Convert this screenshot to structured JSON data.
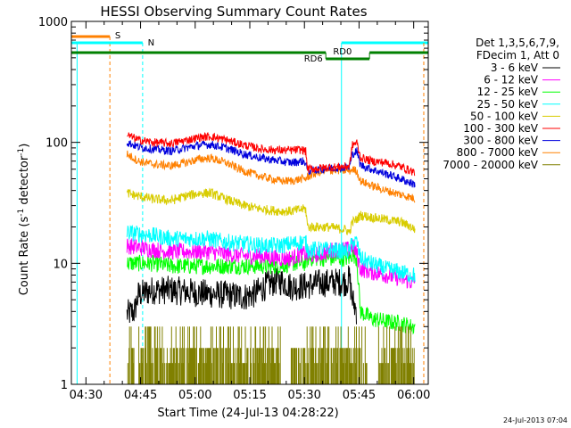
{
  "chart_data": {
    "type": "line",
    "title": "HESSI Observing Summary Count Rates",
    "xlabel": "Start Time (24-Jul-13 04:28:22)",
    "ylabel_main": "Count Rate (s",
    "ylabel_sup1": "-1",
    "ylabel_mid": " detector",
    "ylabel_sup2": "-1",
    "ylabel_end": ")",
    "x_unit": "minutes after 04:28:22",
    "x_range": [
      -2.37,
      95.63
    ],
    "y_range": [
      1,
      1000
    ],
    "y_scale": "log",
    "x_ticks": [
      {
        "label": "04:30",
        "v": 1.63
      },
      {
        "label": "04:45",
        "v": 16.63
      },
      {
        "label": "05:00",
        "v": 31.63
      },
      {
        "label": "05:15",
        "v": 46.63
      },
      {
        "label": "05:30",
        "v": 61.63
      },
      {
        "label": "05:45",
        "v": 76.63
      },
      {
        "label": "06:00",
        "v": 91.63
      }
    ],
    "y_ticks": [
      {
        "label": "1",
        "v": 1
      },
      {
        "label": "10",
        "v": 10
      },
      {
        "label": "100",
        "v": 100
      },
      {
        "label": "1000",
        "v": 1000
      }
    ],
    "legend": {
      "placement": "right",
      "header": [
        "Det 1,3,5,6,7,9,",
        "FDecim 1, Att 0"
      ],
      "entries": [
        {
          "label": "3 - 6 keV",
          "color": "#000000"
        },
        {
          "label": "6 - 12 keV",
          "color": "#ff00ff"
        },
        {
          "label": "12 - 25 keV",
          "color": "#00ff00"
        },
        {
          "label": "25 - 50 keV",
          "color": "#00ffff"
        },
        {
          "label": "50 - 100 keV",
          "color": "#d8cc00"
        },
        {
          "label": "100 - 300 keV",
          "color": "#ff0000"
        },
        {
          "label": "300 - 800 keV",
          "color": "#0000dd"
        },
        {
          "label": "800 - 7000 keV",
          "color": "#ff8000"
        },
        {
          "label": "7000 - 20000 keV",
          "color": "#808000"
        }
      ]
    },
    "series": [
      {
        "color": "#ff0000",
        "noise": 0.035,
        "points": [
          [
            12.9,
            115
          ],
          [
            16,
            105
          ],
          [
            20,
            100
          ],
          [
            25,
            98
          ],
          [
            29,
            104
          ],
          [
            33,
            110
          ],
          [
            36,
            112
          ],
          [
            40,
            105
          ],
          [
            45,
            95
          ],
          [
            50,
            88
          ],
          [
            55,
            86
          ],
          [
            58,
            86
          ],
          [
            61,
            87
          ],
          [
            62,
            84
          ],
          [
            62.5,
            60
          ],
          [
            68,
            62
          ],
          [
            73,
            63
          ],
          [
            74,
            64
          ],
          [
            74.8,
            95
          ],
          [
            76,
            100
          ],
          [
            77,
            75
          ],
          [
            80,
            70
          ],
          [
            84,
            68
          ],
          [
            88,
            63
          ],
          [
            91,
            58
          ],
          [
            92,
            56
          ]
        ]
      },
      {
        "color": "#0000dd",
        "noise": 0.035,
        "points": [
          [
            12.9,
            100
          ],
          [
            16,
            92
          ],
          [
            20,
            88
          ],
          [
            25,
            85
          ],
          [
            29,
            90
          ],
          [
            33,
            95
          ],
          [
            36,
            96
          ],
          [
            40,
            90
          ],
          [
            45,
            80
          ],
          [
            50,
            74
          ],
          [
            55,
            70
          ],
          [
            58,
            68
          ],
          [
            61,
            70
          ],
          [
            62,
            68
          ],
          [
            62.5,
            58
          ],
          [
            66,
            60
          ],
          [
            70,
            62
          ],
          [
            74,
            62
          ],
          [
            74.8,
            80
          ],
          [
            76,
            85
          ],
          [
            77,
            65
          ],
          [
            80,
            60
          ],
          [
            84,
            55
          ],
          [
            88,
            50
          ],
          [
            91,
            46
          ],
          [
            92,
            45
          ]
        ]
      },
      {
        "color": "#ff8000",
        "noise": 0.035,
        "points": [
          [
            12.9,
            80
          ],
          [
            16,
            70
          ],
          [
            20,
            66
          ],
          [
            25,
            64
          ],
          [
            29,
            68
          ],
          [
            33,
            73
          ],
          [
            36,
            74
          ],
          [
            40,
            68
          ],
          [
            45,
            58
          ],
          [
            50,
            52
          ],
          [
            55,
            48
          ],
          [
            58,
            48
          ],
          [
            61,
            50
          ],
          [
            62,
            50
          ],
          [
            63,
            53
          ],
          [
            66,
            57
          ],
          [
            70,
            59
          ],
          [
            74,
            58
          ],
          [
            74.8,
            60
          ],
          [
            76,
            58
          ],
          [
            77,
            48
          ],
          [
            80,
            44
          ],
          [
            84,
            40
          ],
          [
            88,
            37
          ],
          [
            91,
            35
          ],
          [
            92,
            34
          ]
        ]
      },
      {
        "color": "#d8cc00",
        "noise": 0.04,
        "points": [
          [
            12.9,
            38
          ],
          [
            16,
            36
          ],
          [
            20,
            34
          ],
          [
            25,
            33
          ],
          [
            29,
            36
          ],
          [
            33,
            38
          ],
          [
            36,
            38
          ],
          [
            40,
            34
          ],
          [
            45,
            30
          ],
          [
            50,
            28
          ],
          [
            55,
            27
          ],
          [
            58,
            27
          ],
          [
            61,
            28
          ],
          [
            62,
            28
          ],
          [
            62.5,
            20
          ],
          [
            68,
            20
          ],
          [
            73,
            19
          ],
          [
            74,
            18
          ],
          [
            74.8,
            22
          ],
          [
            76,
            23
          ],
          [
            77,
            25
          ],
          [
            80,
            24
          ],
          [
            84,
            23
          ],
          [
            88,
            22
          ],
          [
            91,
            20
          ],
          [
            92,
            19
          ]
        ]
      },
      {
        "color": "#00ffff",
        "noise": 0.07,
        "points": [
          [
            12.9,
            18
          ],
          [
            20,
            17
          ],
          [
            25,
            16
          ],
          [
            30,
            16
          ],
          [
            35,
            16
          ],
          [
            40,
            15
          ],
          [
            45,
            14.5
          ],
          [
            50,
            14
          ],
          [
            55,
            14
          ],
          [
            58,
            14.5
          ],
          [
            61,
            15
          ],
          [
            62,
            15
          ],
          [
            62.5,
            13
          ],
          [
            68,
            13
          ],
          [
            73,
            12.5
          ],
          [
            74,
            12.5
          ],
          [
            74.8,
            15
          ],
          [
            76,
            15
          ],
          [
            77,
            11
          ],
          [
            80,
            10
          ],
          [
            84,
            9
          ],
          [
            88,
            8.5
          ],
          [
            91,
            8
          ],
          [
            92,
            8
          ]
        ]
      },
      {
        "color": "#ff00ff",
        "noise": 0.07,
        "points": [
          [
            12.9,
            14
          ],
          [
            20,
            13
          ],
          [
            25,
            12.5
          ],
          [
            30,
            12.5
          ],
          [
            35,
            12.5
          ],
          [
            40,
            12
          ],
          [
            45,
            11.5
          ],
          [
            50,
            11.5
          ],
          [
            55,
            11
          ],
          [
            58,
            11
          ],
          [
            61,
            12
          ],
          [
            62,
            12
          ],
          [
            62.5,
            11.5
          ],
          [
            66,
            12
          ],
          [
            70,
            13
          ],
          [
            74,
            13
          ],
          [
            74.8,
            14
          ],
          [
            76,
            12
          ],
          [
            77,
            9
          ],
          [
            80,
            8.5
          ],
          [
            84,
            8
          ],
          [
            88,
            7.5
          ],
          [
            91,
            7
          ],
          [
            92,
            7
          ]
        ]
      },
      {
        "color": "#00ff00",
        "noise": 0.07,
        "points": [
          [
            12.9,
            10
          ],
          [
            20,
            10
          ],
          [
            25,
            9.5
          ],
          [
            30,
            9.5
          ],
          [
            35,
            9.5
          ],
          [
            40,
            9.5
          ],
          [
            45,
            9.5
          ],
          [
            50,
            9.5
          ],
          [
            55,
            9.5
          ],
          [
            58,
            10
          ],
          [
            61,
            10
          ],
          [
            62,
            10
          ],
          [
            62.5,
            11
          ],
          [
            68,
            11
          ],
          [
            73,
            11
          ],
          [
            74,
            11
          ],
          [
            74.8,
            12
          ],
          [
            76,
            11
          ],
          [
            77,
            4
          ],
          [
            80,
            3.5
          ],
          [
            84,
            3.3
          ],
          [
            88,
            3.2
          ],
          [
            91,
            3
          ],
          [
            92,
            3
          ]
        ]
      },
      {
        "color": "#000000",
        "noise": 0.12,
        "points": [
          [
            12.9,
            3.8
          ],
          [
            15,
            4
          ],
          [
            16,
            5.5
          ],
          [
            20,
            6
          ],
          [
            25,
            6
          ],
          [
            30,
            5.8
          ],
          [
            35,
            5.6
          ],
          [
            40,
            5.5
          ],
          [
            45,
            5.3
          ],
          [
            48,
            5.6
          ],
          [
            51,
            6.5
          ],
          [
            54,
            7.2
          ],
          [
            56,
            7
          ],
          [
            58,
            6.4
          ],
          [
            61,
            6.5
          ],
          [
            62,
            6.5
          ],
          [
            65,
            6.8
          ],
          [
            70,
            7
          ],
          [
            73,
            7
          ],
          [
            74,
            7.5
          ],
          [
            74.8,
            5
          ],
          [
            76,
            4
          ]
        ]
      }
    ],
    "annotations": [
      {
        "label": "S",
        "color": "#ff8000"
      },
      {
        "label": "N",
        "color": "#00ffff"
      },
      {
        "label": "RD0",
        "color": "#008000"
      },
      {
        "label": "RD6",
        "color": "#008000"
      }
    ]
  },
  "footer": {
    "timestamp": "24-Jul-2013 07:04"
  }
}
